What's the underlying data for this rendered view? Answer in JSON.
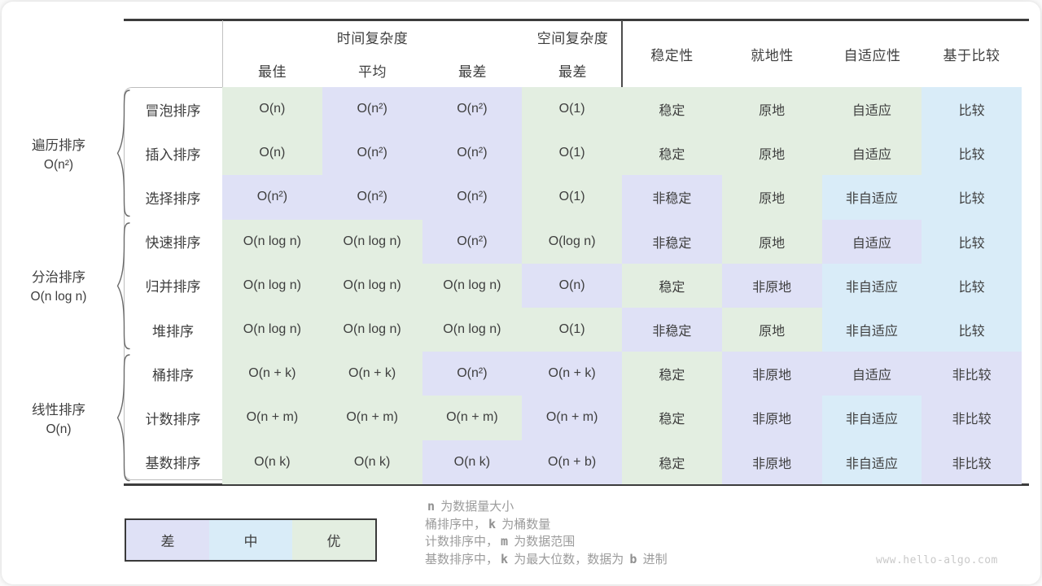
{
  "palette": {
    "good": "#e3eee1",
    "mid": "#d9ecf8",
    "bad": "#dfe1f6"
  },
  "header": {
    "time_complexity": "时间复杂度",
    "space_complexity": "空间复杂度",
    "sub": [
      "最佳",
      "平均",
      "最差",
      "最差"
    ],
    "props": [
      "稳定性",
      "就地性",
      "自适应性",
      "基于比较"
    ]
  },
  "groups": [
    {
      "line1": "遍历排序",
      "line2": "O(n²)"
    },
    {
      "line1": "分治排序",
      "line2": "O(n log n)"
    },
    {
      "line1": "线性排序",
      "line2": "O(n)"
    }
  ],
  "rows": [
    {
      "name": "冒泡排序",
      "cells": [
        {
          "text": "O(n)",
          "quality": "good"
        },
        {
          "text": "O(n²)",
          "quality": "bad"
        },
        {
          "text": "O(n²)",
          "quality": "bad"
        },
        {
          "text": "O(1)",
          "quality": "good"
        },
        {
          "text": "稳定",
          "quality": "good"
        },
        {
          "text": "原地",
          "quality": "good"
        },
        {
          "text": "自适应",
          "quality": "good"
        },
        {
          "text": "比较",
          "quality": "mid"
        }
      ]
    },
    {
      "name": "插入排序",
      "cells": [
        {
          "text": "O(n)",
          "quality": "good"
        },
        {
          "text": "O(n²)",
          "quality": "bad"
        },
        {
          "text": "O(n²)",
          "quality": "bad"
        },
        {
          "text": "O(1)",
          "quality": "good"
        },
        {
          "text": "稳定",
          "quality": "good"
        },
        {
          "text": "原地",
          "quality": "good"
        },
        {
          "text": "自适应",
          "quality": "good"
        },
        {
          "text": "比较",
          "quality": "mid"
        }
      ]
    },
    {
      "name": "选择排序",
      "cells": [
        {
          "text": "O(n²)",
          "quality": "bad"
        },
        {
          "text": "O(n²)",
          "quality": "bad"
        },
        {
          "text": "O(n²)",
          "quality": "bad"
        },
        {
          "text": "O(1)",
          "quality": "good"
        },
        {
          "text": "非稳定",
          "quality": "bad"
        },
        {
          "text": "原地",
          "quality": "good"
        },
        {
          "text": "非自适应",
          "quality": "mid"
        },
        {
          "text": "比较",
          "quality": "mid"
        }
      ]
    },
    {
      "name": "快速排序",
      "cells": [
        {
          "text": "O(n log n)",
          "quality": "good"
        },
        {
          "text": "O(n log n)",
          "quality": "good"
        },
        {
          "text": "O(n²)",
          "quality": "bad"
        },
        {
          "text": "O(log n)",
          "quality": "good"
        },
        {
          "text": "非稳定",
          "quality": "bad"
        },
        {
          "text": "原地",
          "quality": "good"
        },
        {
          "text": "自适应",
          "quality": "bad"
        },
        {
          "text": "比较",
          "quality": "mid"
        }
      ]
    },
    {
      "name": "归并排序",
      "cells": [
        {
          "text": "O(n log n)",
          "quality": "good"
        },
        {
          "text": "O(n log n)",
          "quality": "good"
        },
        {
          "text": "O(n log n)",
          "quality": "good"
        },
        {
          "text": "O(n)",
          "quality": "bad"
        },
        {
          "text": "稳定",
          "quality": "good"
        },
        {
          "text": "非原地",
          "quality": "bad"
        },
        {
          "text": "非自适应",
          "quality": "mid"
        },
        {
          "text": "比较",
          "quality": "mid"
        }
      ]
    },
    {
      "name": "堆排序",
      "cells": [
        {
          "text": "O(n log n)",
          "quality": "good"
        },
        {
          "text": "O(n log n)",
          "quality": "good"
        },
        {
          "text": "O(n log n)",
          "quality": "good"
        },
        {
          "text": "O(1)",
          "quality": "good"
        },
        {
          "text": "非稳定",
          "quality": "bad"
        },
        {
          "text": "原地",
          "quality": "good"
        },
        {
          "text": "非自适应",
          "quality": "mid"
        },
        {
          "text": "比较",
          "quality": "mid"
        }
      ]
    },
    {
      "name": "桶排序",
      "cells": [
        {
          "text": "O(n + k)",
          "quality": "good"
        },
        {
          "text": "O(n + k)",
          "quality": "good"
        },
        {
          "text": "O(n²)",
          "quality": "bad"
        },
        {
          "text": "O(n + k)",
          "quality": "bad"
        },
        {
          "text": "稳定",
          "quality": "good"
        },
        {
          "text": "非原地",
          "quality": "bad"
        },
        {
          "text": "自适应",
          "quality": "bad"
        },
        {
          "text": "非比较",
          "quality": "bad"
        }
      ]
    },
    {
      "name": "计数排序",
      "cells": [
        {
          "text": "O(n + m)",
          "quality": "good"
        },
        {
          "text": "O(n + m)",
          "quality": "good"
        },
        {
          "text": "O(n + m)",
          "quality": "good"
        },
        {
          "text": "O(n + m)",
          "quality": "bad"
        },
        {
          "text": "稳定",
          "quality": "good"
        },
        {
          "text": "非原地",
          "quality": "bad"
        },
        {
          "text": "非自适应",
          "quality": "mid"
        },
        {
          "text": "非比较",
          "quality": "bad"
        }
      ]
    },
    {
      "name": "基数排序",
      "cells": [
        {
          "text": "O(n k)",
          "quality": "good"
        },
        {
          "text": "O(n k)",
          "quality": "good"
        },
        {
          "text": "O(n k)",
          "quality": "bad"
        },
        {
          "text": "O(n + b)",
          "quality": "bad"
        },
        {
          "text": "稳定",
          "quality": "good"
        },
        {
          "text": "非原地",
          "quality": "bad"
        },
        {
          "text": "非自适应",
          "quality": "mid"
        },
        {
          "text": "非比较",
          "quality": "bad"
        }
      ]
    }
  ],
  "legend": {
    "items": [
      {
        "label": "差",
        "quality": "bad"
      },
      {
        "label": "中",
        "quality": "mid"
      },
      {
        "label": "优",
        "quality": "good"
      }
    ]
  },
  "notes": [
    [
      {
        "text": "n",
        "var": true
      },
      {
        "text": " 为数据量大小"
      }
    ],
    [
      {
        "text": "桶排序中，"
      },
      {
        "text": "k",
        "var": true
      },
      {
        "text": " 为桶数量"
      }
    ],
    [
      {
        "text": "计数排序中，"
      },
      {
        "text": "m",
        "var": true
      },
      {
        "text": " 为数据范围"
      }
    ],
    [
      {
        "text": "基数排序中，"
      },
      {
        "text": "k",
        "var": true
      },
      {
        "text": " 为最大位数，数据为 "
      },
      {
        "text": "b",
        "var": true
      },
      {
        "text": " 进制"
      }
    ]
  ],
  "watermark": "www.hello-algo.com"
}
